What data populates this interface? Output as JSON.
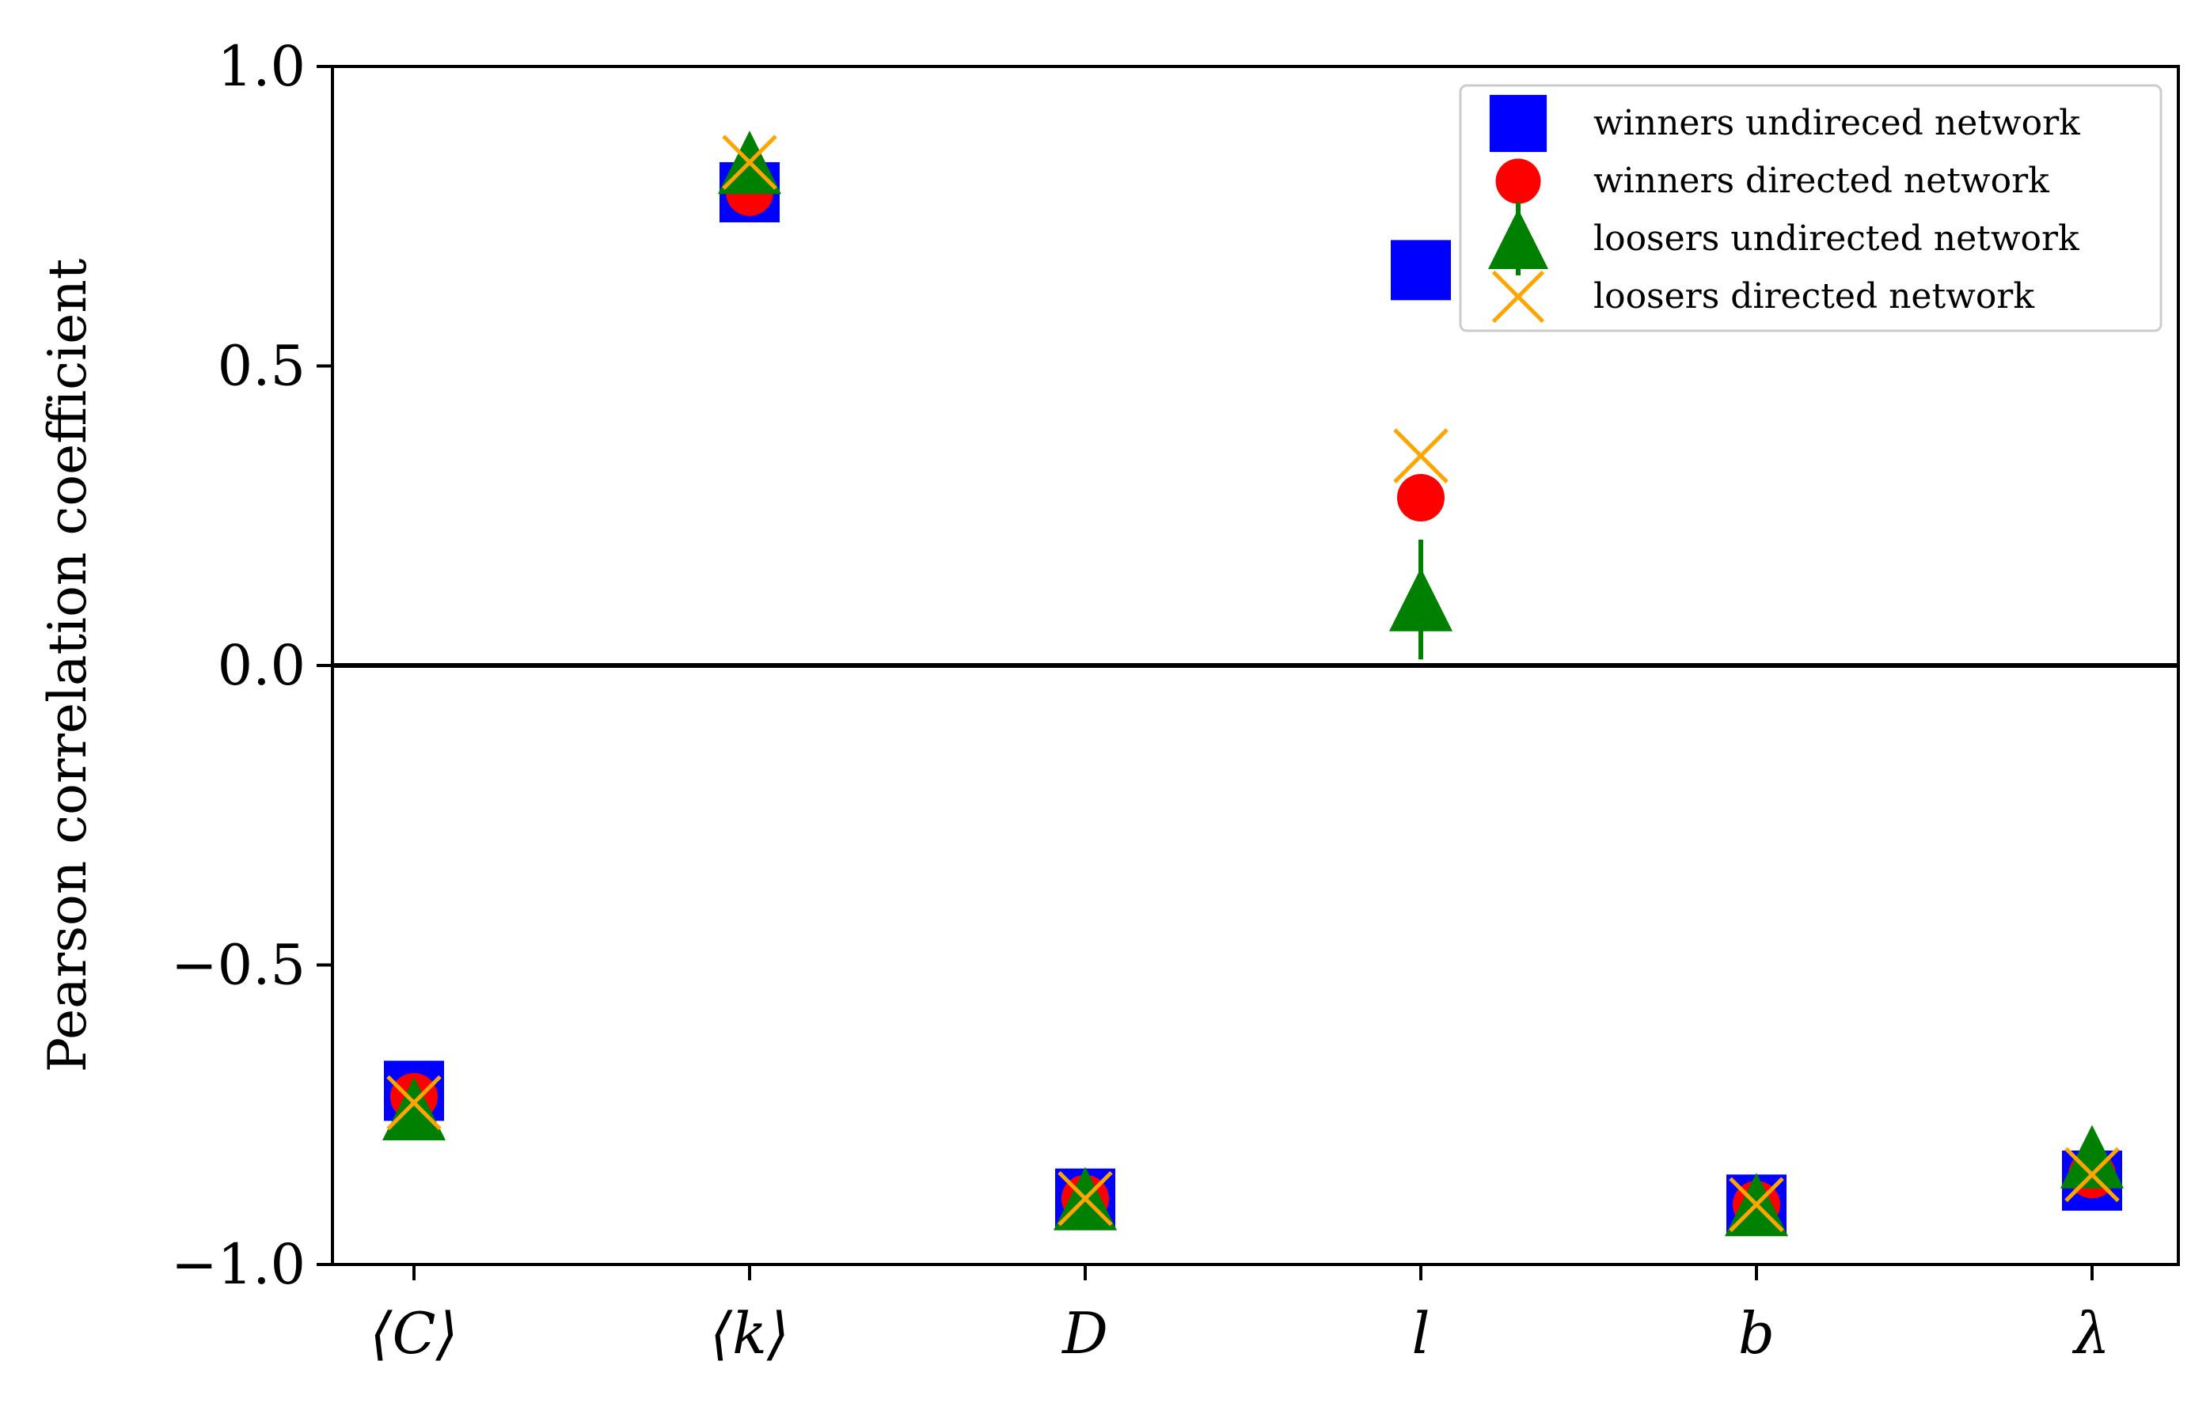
{
  "chart_data": {
    "type": "scatter",
    "title": "",
    "xlabel": "",
    "ylabel": "Pearson correlation coefficient",
    "categories": [
      "⟨C⟩",
      "⟨k⟩",
      "D",
      "l",
      "b",
      "λ"
    ],
    "ylim": [
      -1.0,
      1.0
    ],
    "yticks": [
      -1.0,
      -0.5,
      0.0,
      0.5,
      1.0
    ],
    "ytick_labels": [
      "−1.0",
      "−0.5",
      "0.0",
      "0.5",
      "1.0"
    ],
    "zero_line": true,
    "grid": false,
    "legend_position": "top-right",
    "series": [
      {
        "name": "winners undireced network",
        "marker": "square",
        "color": "#0000ff",
        "values": [
          -0.71,
          0.79,
          -0.89,
          0.66,
          -0.9,
          -0.86
        ]
      },
      {
        "name": "winners directed network",
        "marker": "circle",
        "color": "#ff0000",
        "values": [
          -0.72,
          0.79,
          -0.89,
          0.28,
          -0.9,
          -0.85
        ]
      },
      {
        "name": "loosers undirected network",
        "marker": "triangle",
        "color": "#008000",
        "values": [
          -0.74,
          0.84,
          -0.89,
          0.11,
          -0.9,
          -0.82
        ],
        "errors": [
          null,
          null,
          null,
          0.1,
          null,
          null
        ]
      },
      {
        "name": "loosers directed network",
        "marker": "x",
        "color": "#ffa500",
        "values": [
          -0.73,
          0.84,
          -0.89,
          0.35,
          -0.9,
          -0.85
        ]
      }
    ]
  }
}
